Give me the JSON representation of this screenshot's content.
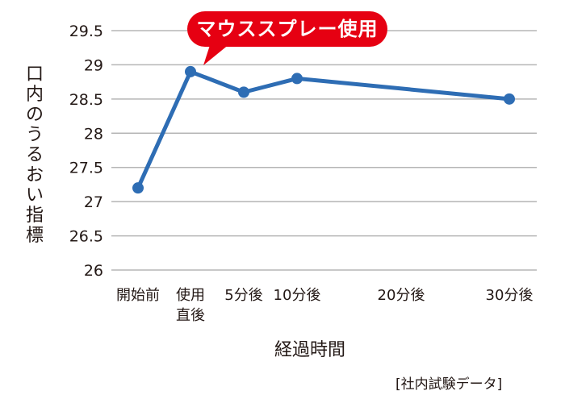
{
  "chart_data": {
    "type": "line",
    "title": "",
    "xlabel": "経過時間",
    "ylabel": "口内のうるおい指標",
    "ylim": [
      26,
      29.5
    ],
    "yticks": [
      26,
      26.5,
      27,
      27.5,
      28,
      28.5,
      29,
      29.5
    ],
    "grid": true,
    "legend": null,
    "categories": [
      "開始前",
      "使用直後",
      "5分後",
      "10分後",
      "20分後",
      "30分後"
    ],
    "x_positions_minutes": [
      null,
      0,
      5,
      10,
      20,
      30
    ],
    "series": [
      {
        "name": "口内のうるおい指標",
        "color": "#2e6db4",
        "points": [
          {
            "category": "開始前",
            "value": 27.2
          },
          {
            "category": "使用直後",
            "value": 28.9
          },
          {
            "category": "5分後",
            "value": 28.6
          },
          {
            "category": "10分後",
            "value": 28.8
          },
          {
            "category": "30分後",
            "value": 28.5
          }
        ]
      }
    ],
    "annotations": [
      {
        "text": "マウススプレー使用",
        "target": "使用直後",
        "color": "#e60012"
      }
    ],
    "source_note": "[社内試験データ]"
  },
  "axis": {
    "y_tick_labels": [
      "29.5",
      "29",
      "28.5",
      "28",
      "27.5",
      "27",
      "26.5",
      "26"
    ],
    "x_tick_labels": [
      {
        "line1": "開始前",
        "line2": ""
      },
      {
        "line1": "使用",
        "line2": "直後"
      },
      {
        "line1": "5分後",
        "line2": ""
      },
      {
        "line1": "10分後",
        "line2": ""
      },
      {
        "line1": "20分後",
        "line2": ""
      },
      {
        "line1": "30分後",
        "line2": ""
      }
    ],
    "ylabel_chars": [
      "口",
      "内",
      "の",
      "う",
      "る",
      "お",
      "い",
      "指",
      "標"
    ],
    "xlabel": "経過時間"
  },
  "callout": {
    "text": "マウススプレー使用"
  },
  "source": "[社内試験データ]",
  "colors": {
    "line": "#2e6db4",
    "callout": "#e60012",
    "grid": "#b5b5b5",
    "text": "#231815"
  }
}
